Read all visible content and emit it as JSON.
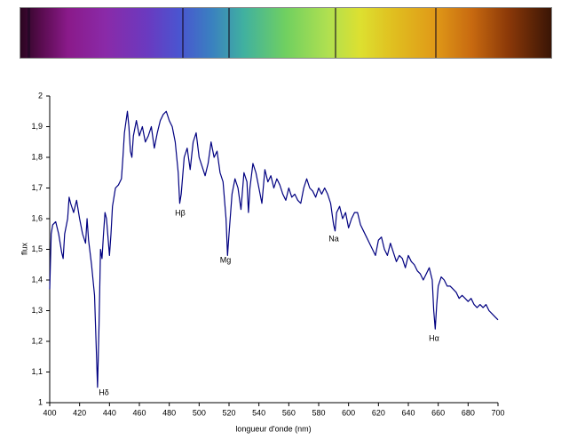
{
  "chart_data": {
    "type": "line",
    "x_label": "longueur d'onde (nm)",
    "y_label": "flux",
    "annotations": [
      {
        "text": "Hδ"
      },
      {
        "text": "Hβ"
      },
      {
        "text": "Mg"
      },
      {
        "text": "Na"
      },
      {
        "text": "Hα"
      }
    ],
    "xlim": [
      400,
      700
    ],
    "xticks": [
      400,
      420,
      440,
      460,
      480,
      500,
      520,
      540,
      560,
      580,
      600,
      620,
      640,
      660,
      680,
      700
    ],
    "ylim": [
      1,
      2
    ],
    "yticks": [
      1,
      {
        "value": 1.1,
        "label": "1,1"
      },
      {
        "value": 1.2,
        "label": "1,2"
      },
      {
        "value": 1.3,
        "label": "1,3"
      },
      {
        "value": 1.4,
        "label": "1,4"
      },
      {
        "value": 1.5,
        "label": "1,5"
      },
      {
        "value": 1.6,
        "label": "1,6"
      },
      {
        "value": 1.7,
        "label": "1,7"
      },
      {
        "value": 1.8,
        "label": "1,8"
      },
      {
        "value": 1.9,
        "label": "1,9"
      },
      2
    ],
    "grid": false,
    "series": [
      {
        "color": "#000080",
        "x": [
          400,
          401,
          402,
          404,
          406,
          408,
          409,
          410,
          412,
          413,
          414,
          416,
          418,
          420,
          422,
          424,
          425,
          426,
          428,
          430,
          431,
          432,
          433,
          434,
          435,
          436,
          437,
          438,
          440,
          441,
          442,
          444,
          446,
          448,
          449,
          450,
          452,
          453,
          454,
          455,
          456,
          458,
          460,
          462,
          464,
          466,
          468,
          470,
          472,
          474,
          476,
          478,
          480,
          482,
          484,
          486,
          487,
          488,
          490,
          492,
          494,
          496,
          498,
          500,
          502,
          504,
          506,
          508,
          510,
          512,
          514,
          516,
          518,
          519,
          520,
          522,
          524,
          526,
          528,
          530,
          532,
          533,
          534,
          536,
          538,
          540,
          542,
          544,
          546,
          548,
          550,
          552,
          554,
          556,
          558,
          560,
          562,
          564,
          566,
          568,
          570,
          572,
          574,
          576,
          578,
          580,
          582,
          584,
          586,
          588,
          590,
          591,
          592,
          594,
          596,
          598,
          600,
          602,
          604,
          606,
          608,
          610,
          612,
          614,
          616,
          618,
          620,
          622,
          624,
          626,
          628,
          630,
          632,
          634,
          636,
          638,
          640,
          642,
          644,
          646,
          648,
          650,
          652,
          654,
          656,
          657,
          658,
          659,
          660,
          662,
          664,
          666,
          668,
          670,
          672,
          674,
          676,
          678,
          680,
          682,
          684,
          686,
          688,
          690,
          692,
          694,
          696,
          698,
          700
        ],
        "values": [
          1.37,
          1.55,
          1.58,
          1.59,
          1.55,
          1.49,
          1.47,
          1.55,
          1.6,
          1.67,
          1.65,
          1.62,
          1.66,
          1.6,
          1.55,
          1.52,
          1.6,
          1.53,
          1.45,
          1.35,
          1.2,
          1.05,
          1.25,
          1.5,
          1.47,
          1.55,
          1.62,
          1.6,
          1.48,
          1.55,
          1.64,
          1.7,
          1.71,
          1.73,
          1.8,
          1.88,
          1.95,
          1.9,
          1.82,
          1.8,
          1.87,
          1.92,
          1.87,
          1.9,
          1.85,
          1.87,
          1.9,
          1.83,
          1.88,
          1.92,
          1.94,
          1.95,
          1.92,
          1.9,
          1.85,
          1.75,
          1.65,
          1.68,
          1.8,
          1.83,
          1.76,
          1.85,
          1.88,
          1.8,
          1.77,
          1.74,
          1.78,
          1.85,
          1.8,
          1.82,
          1.75,
          1.72,
          1.6,
          1.48,
          1.55,
          1.68,
          1.73,
          1.7,
          1.63,
          1.75,
          1.72,
          1.62,
          1.7,
          1.78,
          1.75,
          1.7,
          1.65,
          1.76,
          1.72,
          1.74,
          1.7,
          1.73,
          1.71,
          1.68,
          1.66,
          1.7,
          1.67,
          1.68,
          1.66,
          1.65,
          1.7,
          1.73,
          1.7,
          1.69,
          1.67,
          1.7,
          1.68,
          1.7,
          1.68,
          1.65,
          1.58,
          1.56,
          1.62,
          1.64,
          1.6,
          1.62,
          1.57,
          1.6,
          1.62,
          1.62,
          1.58,
          1.56,
          1.54,
          1.52,
          1.5,
          1.48,
          1.53,
          1.54,
          1.5,
          1.48,
          1.52,
          1.49,
          1.46,
          1.48,
          1.47,
          1.44,
          1.48,
          1.46,
          1.45,
          1.43,
          1.42,
          1.4,
          1.42,
          1.44,
          1.4,
          1.3,
          1.24,
          1.32,
          1.38,
          1.41,
          1.4,
          1.38,
          1.38,
          1.37,
          1.36,
          1.34,
          1.35,
          1.34,
          1.33,
          1.34,
          1.32,
          1.31,
          1.32,
          1.31,
          1.32,
          1.3,
          1.29,
          1.28,
          1.27
        ]
      }
    ]
  }
}
